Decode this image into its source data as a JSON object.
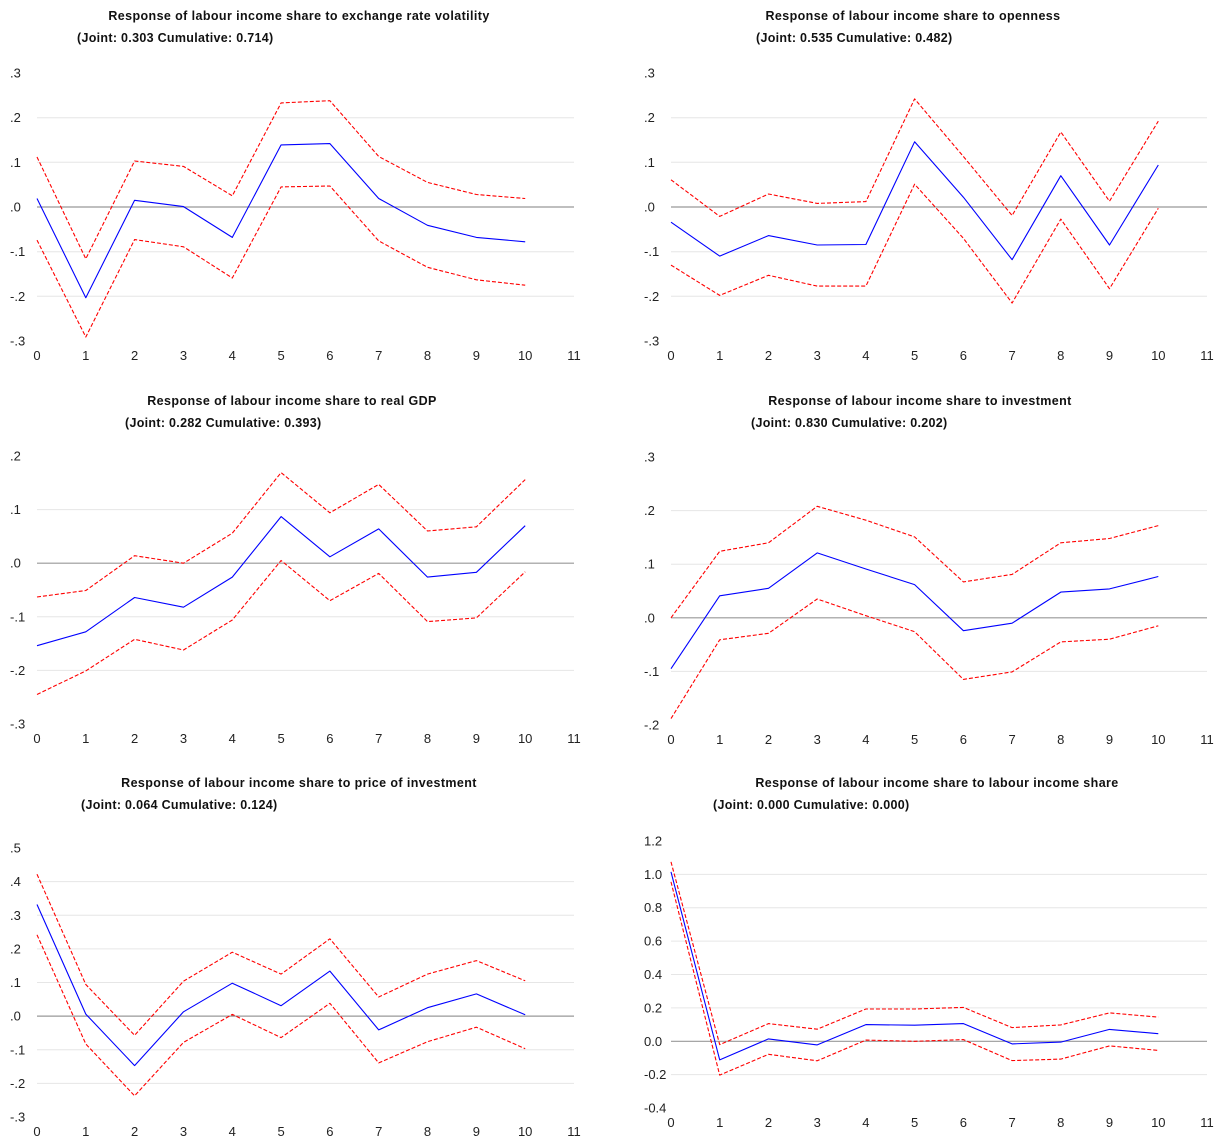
{
  "chart_data": [
    {
      "type": "line",
      "title": "Response of labour income share to exchange rate volatility",
      "subtitle": "(Joint: 0.303 Cumulative: 0.714)",
      "x": [
        0,
        1,
        2,
        3,
        4,
        5,
        6,
        7,
        8,
        9,
        10
      ],
      "xticks": [
        "0",
        "1",
        "2",
        "3",
        "4",
        "5",
        "6",
        "7",
        "8",
        "9",
        "10",
        "11"
      ],
      "xlim": [
        0,
        11
      ],
      "ylim": [
        -0.3,
        0.3
      ],
      "yticks": [
        -0.3,
        -0.2,
        -0.1,
        0.0,
        0.1,
        0.2,
        0.3
      ],
      "ytick_labels": [
        "-.3",
        "-.2",
        "-.1",
        ".0",
        ".1",
        ".2",
        ".3"
      ],
      "series": [
        {
          "role": "response",
          "color": "#0000ff",
          "values": [
            0.019,
            -0.203,
            0.015,
            0.001,
            -0.068,
            0.139,
            0.142,
            0.019,
            -0.041,
            -0.068,
            -0.078
          ]
        },
        {
          "role": "upper",
          "color": "#ff0000",
          "values": [
            0.112,
            -0.116,
            0.103,
            0.091,
            0.025,
            0.233,
            0.238,
            0.113,
            0.055,
            0.028,
            0.019
          ]
        },
        {
          "role": "lower",
          "color": "#ff0000",
          "values": [
            -0.074,
            -0.291,
            -0.073,
            -0.089,
            -0.159,
            0.045,
            0.047,
            -0.076,
            -0.135,
            -0.163,
            -0.175
          ]
        }
      ]
    },
    {
      "type": "line",
      "title": "Response of labour income share to openness",
      "subtitle": "(Joint: 0.535 Cumulative: 0.482)",
      "x": [
        0,
        1,
        2,
        3,
        4,
        5,
        6,
        7,
        8,
        9,
        10
      ],
      "xticks": [
        "0",
        "1",
        "2",
        "3",
        "4",
        "5",
        "6",
        "7",
        "8",
        "9",
        "10",
        "11"
      ],
      "xlim": [
        0,
        11
      ],
      "ylim": [
        -0.3,
        0.3
      ],
      "yticks": [
        -0.3,
        -0.2,
        -0.1,
        0.0,
        0.1,
        0.2,
        0.3
      ],
      "ytick_labels": [
        "-.3",
        "-.2",
        "-.1",
        ".0",
        ".1",
        ".2",
        ".3"
      ],
      "series": [
        {
          "role": "response",
          "color": "#0000ff",
          "values": [
            -0.034,
            -0.11,
            -0.064,
            -0.085,
            -0.084,
            0.146,
            0.022,
            -0.118,
            0.07,
            -0.085,
            0.094
          ]
        },
        {
          "role": "upper",
          "color": "#ff0000",
          "values": [
            0.061,
            -0.021,
            0.029,
            0.008,
            0.012,
            0.242,
            0.113,
            -0.019,
            0.168,
            0.013,
            0.192
          ]
        },
        {
          "role": "lower",
          "color": "#ff0000",
          "values": [
            -0.13,
            -0.198,
            -0.153,
            -0.177,
            -0.177,
            0.051,
            -0.07,
            -0.215,
            -0.027,
            -0.183,
            -0.003
          ]
        }
      ]
    },
    {
      "type": "line",
      "title": "Response of labour income share to real GDP",
      "subtitle": "(Joint: 0.282 Cumulative: 0.393)",
      "x": [
        0,
        1,
        2,
        3,
        4,
        5,
        6,
        7,
        8,
        9,
        10
      ],
      "xticks": [
        "0",
        "1",
        "2",
        "3",
        "4",
        "5",
        "6",
        "7",
        "8",
        "9",
        "10",
        "11"
      ],
      "xlim": [
        0,
        11
      ],
      "ylim": [
        -0.3,
        0.2
      ],
      "yticks": [
        -0.3,
        -0.2,
        -0.1,
        0.0,
        0.1,
        0.2
      ],
      "ytick_labels": [
        "-.3",
        "-.2",
        "-.1",
        ".0",
        ".1",
        ".2"
      ],
      "series": [
        {
          "role": "response",
          "color": "#0000ff",
          "values": [
            -0.154,
            -0.128,
            -0.064,
            -0.082,
            -0.026,
            0.087,
            0.012,
            0.064,
            -0.026,
            -0.017,
            0.07
          ]
        },
        {
          "role": "upper",
          "color": "#ff0000",
          "values": [
            -0.063,
            -0.051,
            0.014,
            0.0,
            0.056,
            0.169,
            0.094,
            0.147,
            0.06,
            0.068,
            0.156
          ]
        },
        {
          "role": "lower",
          "color": "#ff0000",
          "values": [
            -0.245,
            -0.201,
            -0.142,
            -0.162,
            -0.106,
            0.005,
            -0.07,
            -0.019,
            -0.109,
            -0.102,
            -0.016
          ]
        }
      ]
    },
    {
      "type": "line",
      "title": "Response of labour income share to investment",
      "subtitle": "(Joint: 0.830 Cumulative: 0.202)",
      "x": [
        0,
        1,
        2,
        3,
        4,
        5,
        6,
        7,
        8,
        9,
        10
      ],
      "xticks": [
        "0",
        "1",
        "2",
        "3",
        "4",
        "5",
        "6",
        "7",
        "8",
        "9",
        "10",
        "11"
      ],
      "xlim": [
        0,
        11
      ],
      "ylim": [
        -0.2,
        0.3
      ],
      "yticks": [
        -0.2,
        -0.1,
        0.0,
        0.1,
        0.2,
        0.3
      ],
      "ytick_labels": [
        "-.2",
        "-.1",
        ".0",
        ".1",
        ".2",
        ".3"
      ],
      "series": [
        {
          "role": "response",
          "color": "#0000ff",
          "values": [
            -0.095,
            0.041,
            0.055,
            0.121,
            0.091,
            0.062,
            -0.024,
            -0.01,
            0.048,
            0.054,
            0.077
          ]
        },
        {
          "role": "upper",
          "color": "#ff0000",
          "values": [
            0.0,
            0.124,
            0.14,
            0.208,
            0.182,
            0.151,
            0.067,
            0.081,
            0.14,
            0.148,
            0.172
          ]
        },
        {
          "role": "lower",
          "color": "#ff0000",
          "values": [
            -0.188,
            -0.041,
            -0.029,
            0.035,
            0.004,
            -0.026,
            -0.115,
            -0.101,
            -0.045,
            -0.04,
            -0.015
          ]
        }
      ]
    },
    {
      "type": "line",
      "title": "Response of labour income share to price of investment",
      "subtitle": "(Joint: 0.064 Cumulative: 0.124)",
      "x": [
        0,
        1,
        2,
        3,
        4,
        5,
        6,
        7,
        8,
        9,
        10
      ],
      "xticks": [
        "0",
        "1",
        "2",
        "3",
        "4",
        "5",
        "6",
        "7",
        "8",
        "9",
        "10",
        "11"
      ],
      "xlim": [
        0,
        11
      ],
      "ylim": [
        -0.3,
        0.5
      ],
      "yticks": [
        -0.3,
        -0.2,
        -0.1,
        0.0,
        0.1,
        0.2,
        0.3,
        0.4,
        0.5
      ],
      "ytick_labels": [
        "-.3",
        "-.2",
        "-.1",
        ".0",
        ".1",
        ".2",
        ".3",
        ".4",
        ".5"
      ],
      "series": [
        {
          "role": "response",
          "color": "#0000ff",
          "values": [
            0.332,
            0.006,
            -0.147,
            0.013,
            0.098,
            0.031,
            0.134,
            -0.041,
            0.025,
            0.066,
            0.004
          ]
        },
        {
          "role": "upper",
          "color": "#ff0000",
          "values": [
            0.422,
            0.094,
            -0.057,
            0.104,
            0.19,
            0.125,
            0.23,
            0.057,
            0.125,
            0.165,
            0.105
          ]
        },
        {
          "role": "lower",
          "color": "#ff0000",
          "values": [
            0.242,
            -0.083,
            -0.237,
            -0.078,
            0.005,
            -0.064,
            0.038,
            -0.139,
            -0.076,
            -0.033,
            -0.097
          ]
        }
      ]
    },
    {
      "type": "line",
      "title": "Response of labour income share to labour income share",
      "subtitle": "(Joint: 0.000 Cumulative: 0.000)",
      "x": [
        0,
        1,
        2,
        3,
        4,
        5,
        6,
        7,
        8,
        9,
        10
      ],
      "xticks": [
        "0",
        "1",
        "2",
        "3",
        "4",
        "5",
        "6",
        "7",
        "8",
        "9",
        "10",
        "11"
      ],
      "xlim": [
        0,
        11
      ],
      "ylim": [
        -0.4,
        1.2
      ],
      "yticks": [
        -0.4,
        -0.2,
        0.0,
        0.2,
        0.4,
        0.6,
        0.8,
        1.0,
        1.2
      ],
      "ytick_labels": [
        "-0.4",
        "-0.2",
        "0.0",
        "0.2",
        "0.4",
        "0.6",
        "0.8",
        "1.0",
        "1.2"
      ],
      "series": [
        {
          "role": "response",
          "color": "#0000ff",
          "values": [
            1.015,
            -0.112,
            0.014,
            -0.022,
            0.1,
            0.096,
            0.106,
            -0.016,
            -0.005,
            0.071,
            0.045
          ]
        },
        {
          "role": "upper",
          "color": "#ff0000",
          "values": [
            1.075,
            -0.02,
            0.106,
            0.072,
            0.193,
            0.193,
            0.203,
            0.082,
            0.098,
            0.17,
            0.145
          ]
        },
        {
          "role": "lower",
          "color": "#ff0000",
          "values": [
            0.955,
            -0.203,
            -0.078,
            -0.117,
            0.007,
            0.0,
            0.01,
            -0.116,
            -0.107,
            -0.028,
            -0.055
          ]
        }
      ]
    }
  ]
}
